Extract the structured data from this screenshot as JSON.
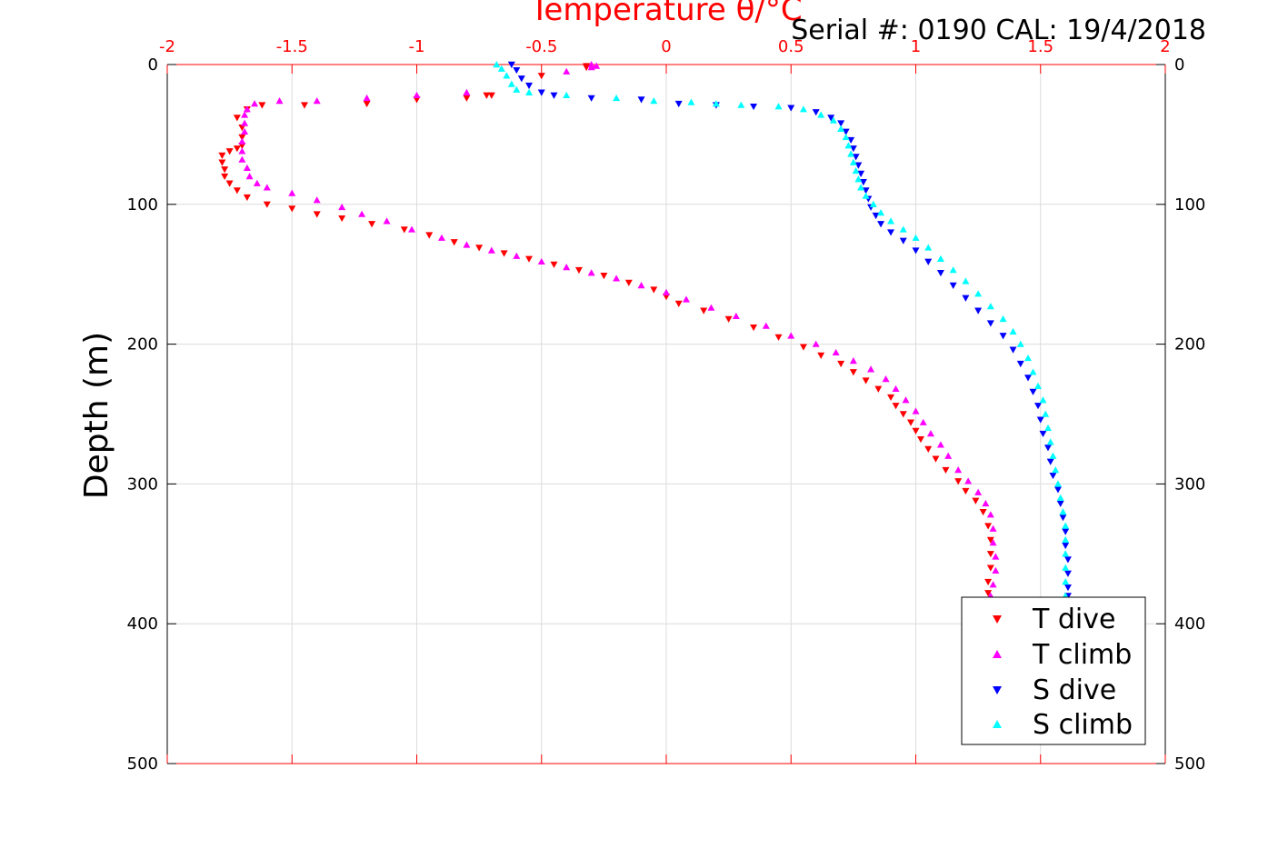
{
  "chart_data": {
    "type": "scatter",
    "title": "Serial #: 0190  CAL: 19/4/2018",
    "xlabel": "Temperature θ/°C",
    "ylabel": "Depth (m)",
    "xlim": [
      -2,
      2
    ],
    "ylim": [
      0,
      500
    ],
    "y_reversed": true,
    "x_ticks": [
      "-2",
      "-1.5",
      "-1",
      "-0.5",
      "0",
      "0.5",
      "1",
      "1.5",
      "2"
    ],
    "x_tick_values": [
      -2,
      -1.5,
      -1,
      -0.5,
      0,
      0.5,
      1,
      1.5,
      2
    ],
    "y_ticks": [
      "0",
      "100",
      "200",
      "300",
      "400",
      "500"
    ],
    "y_tick_values": [
      0,
      100,
      200,
      300,
      400,
      500
    ],
    "grid": true,
    "legend_position": "bottom-right",
    "axis_color": "#ff0000",
    "series": [
      {
        "name": "T dive",
        "color": "#ff0000",
        "marker": "triangle-down",
        "points": [
          [
            -0.32,
            1
          ],
          [
            -0.32,
            2
          ],
          [
            -0.5,
            8
          ],
          [
            -0.7,
            22
          ],
          [
            -0.8,
            24
          ],
          [
            -0.72,
            22
          ],
          [
            -1.0,
            25
          ],
          [
            -1.2,
            28
          ],
          [
            -1.45,
            29
          ],
          [
            -1.62,
            29
          ],
          [
            -1.68,
            32
          ],
          [
            -1.72,
            38
          ],
          [
            -1.7,
            45
          ],
          [
            -1.7,
            52
          ],
          [
            -1.7,
            58
          ],
          [
            -1.72,
            60
          ],
          [
            -1.75,
            62
          ],
          [
            -1.78,
            65
          ],
          [
            -1.78,
            70
          ],
          [
            -1.77,
            75
          ],
          [
            -1.77,
            80
          ],
          [
            -1.75,
            85
          ],
          [
            -1.72,
            90
          ],
          [
            -1.68,
            95
          ],
          [
            -1.6,
            100
          ],
          [
            -1.5,
            103
          ],
          [
            -1.4,
            107
          ],
          [
            -1.3,
            110
          ],
          [
            -1.18,
            114
          ],
          [
            -1.05,
            118
          ],
          [
            -0.95,
            122
          ],
          [
            -0.85,
            127
          ],
          [
            -0.75,
            131
          ],
          [
            -0.65,
            135
          ],
          [
            -0.55,
            139
          ],
          [
            -0.45,
            143
          ],
          [
            -0.35,
            147
          ],
          [
            -0.25,
            151
          ],
          [
            -0.15,
            156
          ],
          [
            -0.05,
            161
          ],
          [
            0.0,
            166
          ],
          [
            0.05,
            171
          ],
          [
            0.15,
            176
          ],
          [
            0.25,
            182
          ],
          [
            0.35,
            188
          ],
          [
            0.45,
            195
          ],
          [
            0.55,
            202
          ],
          [
            0.62,
            208
          ],
          [
            0.7,
            214
          ],
          [
            0.75,
            220
          ],
          [
            0.8,
            226
          ],
          [
            0.85,
            232
          ],
          [
            0.9,
            238
          ],
          [
            0.92,
            244
          ],
          [
            0.95,
            250
          ],
          [
            0.98,
            256
          ],
          [
            1.0,
            262
          ],
          [
            1.02,
            268
          ],
          [
            1.05,
            275
          ],
          [
            1.08,
            282
          ],
          [
            1.12,
            290
          ],
          [
            1.17,
            298
          ],
          [
            1.2,
            305
          ],
          [
            1.24,
            312
          ],
          [
            1.27,
            320
          ],
          [
            1.29,
            330
          ],
          [
            1.3,
            340
          ],
          [
            1.3,
            350
          ],
          [
            1.3,
            360
          ],
          [
            1.29,
            370
          ],
          [
            1.29,
            378
          ]
        ]
      },
      {
        "name": "T climb",
        "color": "#ff00ff",
        "marker": "triangle-up",
        "points": [
          [
            -0.3,
            0
          ],
          [
            -0.28,
            1
          ],
          [
            -0.3,
            2
          ],
          [
            -0.4,
            5
          ],
          [
            -0.8,
            20
          ],
          [
            -1.0,
            22
          ],
          [
            -1.2,
            24
          ],
          [
            -1.4,
            26
          ],
          [
            -1.55,
            26
          ],
          [
            -1.65,
            28
          ],
          [
            -1.68,
            32
          ],
          [
            -1.69,
            36
          ],
          [
            -1.69,
            42
          ],
          [
            -1.69,
            48
          ],
          [
            -1.7,
            55
          ],
          [
            -1.7,
            62
          ],
          [
            -1.7,
            68
          ],
          [
            -1.68,
            74
          ],
          [
            -1.67,
            80
          ],
          [
            -1.64,
            85
          ],
          [
            -1.6,
            88
          ],
          [
            -1.5,
            92
          ],
          [
            -1.4,
            97
          ],
          [
            -1.3,
            102
          ],
          [
            -1.22,
            107
          ],
          [
            -1.12,
            112
          ],
          [
            -1.02,
            118
          ],
          [
            -0.9,
            124
          ],
          [
            -0.8,
            129
          ],
          [
            -0.7,
            133
          ],
          [
            -0.6,
            137
          ],
          [
            -0.5,
            141
          ],
          [
            -0.4,
            145
          ],
          [
            -0.3,
            149
          ],
          [
            -0.2,
            153
          ],
          [
            -0.1,
            158
          ],
          [
            0.0,
            163
          ],
          [
            0.08,
            168
          ],
          [
            0.18,
            174
          ],
          [
            0.28,
            180
          ],
          [
            0.4,
            187
          ],
          [
            0.5,
            194
          ],
          [
            0.6,
            200
          ],
          [
            0.68,
            206
          ],
          [
            0.75,
            212
          ],
          [
            0.82,
            218
          ],
          [
            0.88,
            225
          ],
          [
            0.92,
            232
          ],
          [
            0.96,
            240
          ],
          [
            1.0,
            248
          ],
          [
            1.03,
            256
          ],
          [
            1.06,
            264
          ],
          [
            1.1,
            272
          ],
          [
            1.13,
            280
          ],
          [
            1.17,
            290
          ],
          [
            1.21,
            298
          ],
          [
            1.25,
            306
          ],
          [
            1.28,
            314
          ],
          [
            1.3,
            322
          ],
          [
            1.31,
            332
          ],
          [
            1.31,
            342
          ],
          [
            1.32,
            352
          ],
          [
            1.32,
            362
          ],
          [
            1.31,
            372
          ],
          [
            1.3,
            380
          ]
        ]
      },
      {
        "name": "S dive",
        "color": "#0000ff",
        "marker": "triangle-down",
        "points": [
          [
            -0.62,
            0
          ],
          [
            -0.6,
            4
          ],
          [
            -0.58,
            10
          ],
          [
            -0.55,
            15
          ],
          [
            -0.5,
            20
          ],
          [
            -0.45,
            22
          ],
          [
            -0.3,
            24
          ],
          [
            -0.1,
            25
          ],
          [
            0.05,
            28
          ],
          [
            0.2,
            29
          ],
          [
            0.35,
            30
          ],
          [
            0.5,
            31
          ],
          [
            0.6,
            34
          ],
          [
            0.66,
            38
          ],
          [
            0.7,
            42
          ],
          [
            0.72,
            48
          ],
          [
            0.74,
            54
          ],
          [
            0.75,
            60
          ],
          [
            0.76,
            66
          ],
          [
            0.77,
            72
          ],
          [
            0.78,
            78
          ],
          [
            0.79,
            84
          ],
          [
            0.8,
            90
          ],
          [
            0.81,
            96
          ],
          [
            0.82,
            102
          ],
          [
            0.84,
            108
          ],
          [
            0.86,
            114
          ],
          [
            0.9,
            120
          ],
          [
            0.95,
            126
          ],
          [
            1.0,
            133
          ],
          [
            1.05,
            141
          ],
          [
            1.1,
            149
          ],
          [
            1.15,
            158
          ],
          [
            1.2,
            167
          ],
          [
            1.25,
            176
          ],
          [
            1.3,
            185
          ],
          [
            1.35,
            194
          ],
          [
            1.39,
            204
          ],
          [
            1.42,
            214
          ],
          [
            1.45,
            224
          ],
          [
            1.47,
            234
          ],
          [
            1.49,
            244
          ],
          [
            1.5,
            254
          ],
          [
            1.51,
            264
          ],
          [
            1.53,
            274
          ],
          [
            1.54,
            284
          ],
          [
            1.55,
            294
          ],
          [
            1.57,
            304
          ],
          [
            1.58,
            314
          ],
          [
            1.59,
            324
          ],
          [
            1.6,
            334
          ],
          [
            1.6,
            344
          ],
          [
            1.61,
            354
          ],
          [
            1.61,
            364
          ],
          [
            1.61,
            374
          ],
          [
            1.61,
            380
          ]
        ]
      },
      {
        "name": "S climb",
        "color": "#00ffff",
        "marker": "triangle-up",
        "points": [
          [
            -0.68,
            0
          ],
          [
            -0.66,
            3
          ],
          [
            -0.64,
            8
          ],
          [
            -0.62,
            14
          ],
          [
            -0.6,
            18
          ],
          [
            -0.55,
            20
          ],
          [
            -0.4,
            22
          ],
          [
            -0.2,
            24
          ],
          [
            -0.05,
            26
          ],
          [
            0.1,
            27
          ],
          [
            0.2,
            28
          ],
          [
            0.3,
            29
          ],
          [
            0.45,
            30
          ],
          [
            0.55,
            32
          ],
          [
            0.62,
            36
          ],
          [
            0.67,
            40
          ],
          [
            0.7,
            46
          ],
          [
            0.72,
            52
          ],
          [
            0.73,
            58
          ],
          [
            0.74,
            64
          ],
          [
            0.75,
            70
          ],
          [
            0.76,
            76
          ],
          [
            0.77,
            82
          ],
          [
            0.78,
            88
          ],
          [
            0.8,
            94
          ],
          [
            0.83,
            100
          ],
          [
            0.86,
            106
          ],
          [
            0.9,
            112
          ],
          [
            0.95,
            118
          ],
          [
            1.0,
            124
          ],
          [
            1.05,
            131
          ],
          [
            1.1,
            139
          ],
          [
            1.15,
            147
          ],
          [
            1.2,
            155
          ],
          [
            1.25,
            164
          ],
          [
            1.3,
            173
          ],
          [
            1.35,
            182
          ],
          [
            1.39,
            191
          ],
          [
            1.42,
            200
          ],
          [
            1.45,
            210
          ],
          [
            1.47,
            220
          ],
          [
            1.49,
            230
          ],
          [
            1.51,
            240
          ],
          [
            1.52,
            250
          ],
          [
            1.53,
            260
          ],
          [
            1.54,
            270
          ],
          [
            1.55,
            280
          ],
          [
            1.56,
            290
          ],
          [
            1.57,
            300
          ],
          [
            1.58,
            310
          ],
          [
            1.59,
            320
          ],
          [
            1.6,
            330
          ],
          [
            1.6,
            340
          ],
          [
            1.6,
            350
          ],
          [
            1.6,
            360
          ],
          [
            1.6,
            370
          ],
          [
            1.6,
            380
          ]
        ]
      }
    ]
  }
}
